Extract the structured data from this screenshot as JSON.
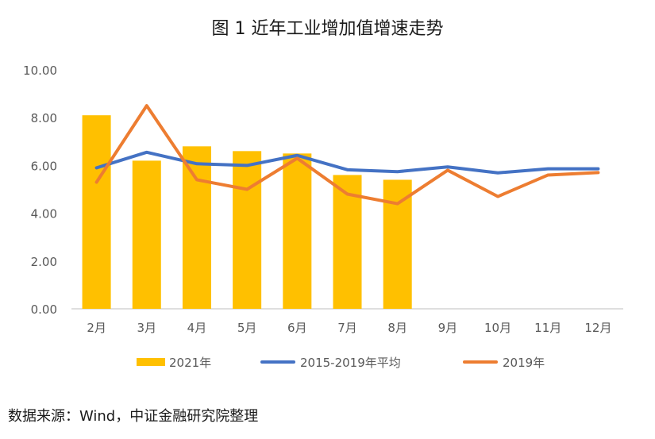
{
  "title": "图 1  近年工业增加值增速走势",
  "source_note": "数据来源：Wind，中证金融研究院整理",
  "chart_data": {
    "type": "bar",
    "title": "图 1  近年工业增加值增速走势",
    "categories": [
      "2月",
      "3月",
      "4月",
      "5月",
      "6月",
      "7月",
      "8月",
      "9月",
      "10月",
      "11月",
      "12月"
    ],
    "ylim": [
      0,
      10
    ],
    "yticks": [
      "0.00",
      "2.00",
      "4.00",
      "6.00",
      "8.00",
      "10.00"
    ],
    "grid": false,
    "legend_position": "bottom",
    "series": [
      {
        "name": "2021年",
        "type": "bar",
        "color": "#FFC000",
        "values": [
          8.1,
          6.2,
          6.8,
          6.6,
          6.5,
          5.6,
          5.4,
          null,
          null,
          null,
          null
        ]
      },
      {
        "name": "2015-2019年平均",
        "type": "line",
        "color": "#4472C4",
        "values": [
          5.9,
          6.55,
          6.07,
          6.0,
          6.42,
          5.82,
          5.74,
          5.94,
          5.69,
          5.86,
          5.86
        ]
      },
      {
        "name": "2019年",
        "type": "line",
        "color": "#ED7D31",
        "values": [
          5.3,
          8.5,
          5.4,
          5.0,
          6.3,
          4.8,
          4.4,
          5.8,
          4.7,
          5.6,
          5.7
        ]
      }
    ]
  }
}
